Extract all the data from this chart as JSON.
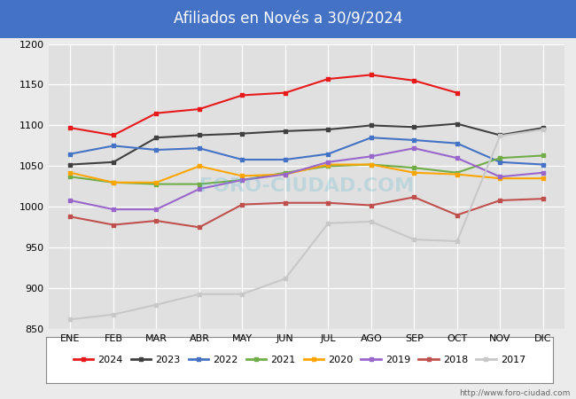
{
  "title": "Afiliados en Novés a 30/9/2024",
  "title_bg_color": "#4472c4",
  "title_text_color": "white",
  "ylim": [
    850,
    1200
  ],
  "yticks": [
    850,
    900,
    950,
    1000,
    1050,
    1100,
    1150,
    1200
  ],
  "months": [
    "ENE",
    "FEB",
    "MAR",
    "ABR",
    "MAY",
    "JUN",
    "JUL",
    "AGO",
    "SEP",
    "OCT",
    "NOV",
    "DIC"
  ],
  "url": "http://www.foro-ciudad.com",
  "series": {
    "2024": {
      "color": "#e8191a",
      "data": [
        1097,
        1088,
        1115,
        1120,
        1137,
        1140,
        1157,
        1162,
        1155,
        1140,
        null,
        null
      ]
    },
    "2023": {
      "color": "#404040",
      "data": [
        1052,
        1055,
        1085,
        1088,
        1090,
        1093,
        1095,
        1100,
        1098,
        1102,
        1088,
        1097
      ]
    },
    "2022": {
      "color": "#4472c4",
      "data": [
        1065,
        1075,
        1070,
        1072,
        1058,
        1058,
        1065,
        1085,
        1082,
        1078,
        1055,
        1052
      ]
    },
    "2021": {
      "color": "#70ad47",
      "data": [
        1037,
        1030,
        1028,
        1028,
        1033,
        1042,
        1050,
        1052,
        1048,
        1042,
        1060,
        1063
      ]
    },
    "2020": {
      "color": "#ffa500",
      "data": [
        1042,
        1030,
        1030,
        1050,
        1038,
        1040,
        1052,
        1052,
        1042,
        1040,
        1035,
        1035
      ]
    },
    "2019": {
      "color": "#9966cc",
      "data": [
        1008,
        997,
        997,
        1022,
        1033,
        1040,
        1055,
        1062,
        1072,
        1060,
        1037,
        1042
      ]
    },
    "2018": {
      "color": "#c0504d",
      "data": [
        988,
        978,
        983,
        975,
        1003,
        1005,
        1005,
        1002,
        1012,
        990,
        1008,
        1010
      ]
    },
    "2017": {
      "color": "#c8c8c8",
      "data": [
        862,
        868,
        880,
        893,
        893,
        912,
        980,
        982,
        960,
        958,
        1087,
        1095
      ]
    }
  },
  "legend_order": [
    "2024",
    "2023",
    "2022",
    "2021",
    "2020",
    "2019",
    "2018",
    "2017"
  ],
  "bg_color": "#ebebeb",
  "plot_bg_color": "#e0e0e0",
  "grid_color": "#ffffff",
  "line_width": 1.5,
  "marker_size": 2.5
}
